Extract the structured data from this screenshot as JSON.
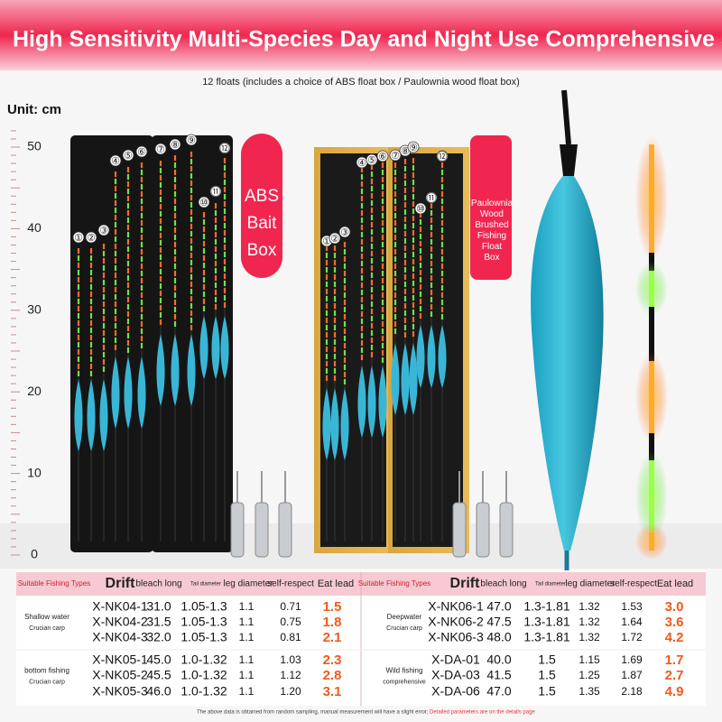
{
  "header": {
    "title": "High Sensitivity Multi-Species Day and Night Use Comprehensive Set",
    "subtitle": "12 floats (includes a choice of ABS float box / Paulownia wood float box)"
  },
  "ruler": {
    "unit": "Unit: cm",
    "labels": [
      "50",
      "40",
      "30",
      "20",
      "10",
      "0"
    ]
  },
  "boxes": [
    {
      "label": "ABS Bait Box",
      "float_numbers": [
        "①",
        "②",
        "③",
        "④",
        "⑤",
        "⑥",
        "⑦",
        "⑧",
        "⑨",
        "⑩",
        "⑪",
        "⑫"
      ]
    },
    {
      "label": "Paulownia Wood Brushed Fishing Float Box",
      "float_numbers": [
        "①",
        "②",
        "③",
        "④",
        "⑤",
        "⑥",
        "⑦",
        "⑧",
        "⑨",
        "⑩",
        "⑪",
        "⑫"
      ]
    }
  ],
  "tables": [
    {
      "headers": [
        "Suitable Fishing Types",
        "Drift",
        "bleach long",
        "Tail diameter",
        "leg diameter",
        "self-respect",
        "Eat lead"
      ],
      "groups": [
        {
          "type": "Shallow water",
          "sub": "Crucian carp",
          "rows": [
            [
              "X-NK04-1",
              "31.0",
              "1.05-1.3",
              "1.1",
              "0.71",
              "1.5"
            ],
            [
              "X-NK04-2",
              "31.5",
              "1.05-1.3",
              "1.1",
              "0.75",
              "1.8"
            ],
            [
              "X-NK04-3",
              "32.0",
              "1.05-1.3",
              "1.1",
              "0.81",
              "2.1"
            ]
          ]
        },
        {
          "type": "bottom fishing",
          "sub": "Crucian carp",
          "rows": [
            [
              "X-NK05-1",
              "45.0",
              "1.0-1.32",
              "1.1",
              "1.03",
              "2.3"
            ],
            [
              "X-NK05-2",
              "45.5",
              "1.0-1.32",
              "1.1",
              "1.12",
              "2.8"
            ],
            [
              "X-NK05-3",
              "46.0",
              "1.0-1.32",
              "1.1",
              "1.20",
              "3.1"
            ]
          ]
        }
      ]
    },
    {
      "headers": [
        "Suitable Fishing Types",
        "Drift",
        "bleach long",
        "Tail diameter",
        "leg diameter",
        "self-respect",
        "Eat lead"
      ],
      "groups": [
        {
          "type": "Deepwater",
          "sub": "Crucian carp",
          "rows": [
            [
              "X-NK06-1",
              "47.0",
              "1.3-1.81",
              "1.32",
              "1.53",
              "3.0"
            ],
            [
              "X-NK06-2",
              "47.5",
              "1.3-1.81",
              "1.32",
              "1.64",
              "3.6"
            ],
            [
              "X-NK06-3",
              "48.0",
              "1.3-1.81",
              "1.32",
              "1.72",
              "4.2"
            ]
          ]
        },
        {
          "type": "Wild fishing",
          "sub": "comprehensive",
          "rows": [
            [
              "X-DA-01",
              "40.0",
              "1.5",
              "1.15",
              "1.69",
              "1.7"
            ],
            [
              "X-DA-03",
              "41.5",
              "1.5",
              "1.25",
              "1.87",
              "2.7"
            ],
            [
              "X-DA-06",
              "47.0",
              "1.5",
              "1.35",
              "2.18",
              "4.9"
            ]
          ]
        }
      ]
    }
  ],
  "footer": {
    "note": "The above data is obtained from random sampling, manual measurement will have a slight error;",
    "link": "Detailed parameters are on the details page"
  }
}
